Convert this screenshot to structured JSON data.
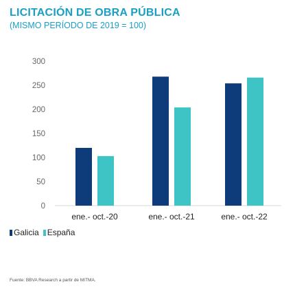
{
  "header": {
    "title": "LICITACIÓN DE OBRA PÚBLICA",
    "subtitle": "(MISMO PERÍODO DE 2019 = 100)"
  },
  "footer": {
    "source": "Fuente: BBVA Research a partir de MITMA."
  },
  "colors": {
    "galicia": "#0e3c7a",
    "espana": "#3ec4c4"
  },
  "chart_data": {
    "type": "bar",
    "categories": [
      "ene.- oct.-20",
      "ene.- oct.-21",
      "ene.- oct.-22"
    ],
    "series": [
      {
        "name": "Galicia",
        "values": [
          120,
          268,
          254
        ]
      },
      {
        "name": "España",
        "values": [
          103,
          204,
          266
        ]
      }
    ],
    "yticks": [
      0,
      50,
      100,
      150,
      200,
      250,
      300
    ],
    "ylim": [
      0,
      300
    ],
    "grid": false,
    "legend_position": "bottom-left"
  }
}
